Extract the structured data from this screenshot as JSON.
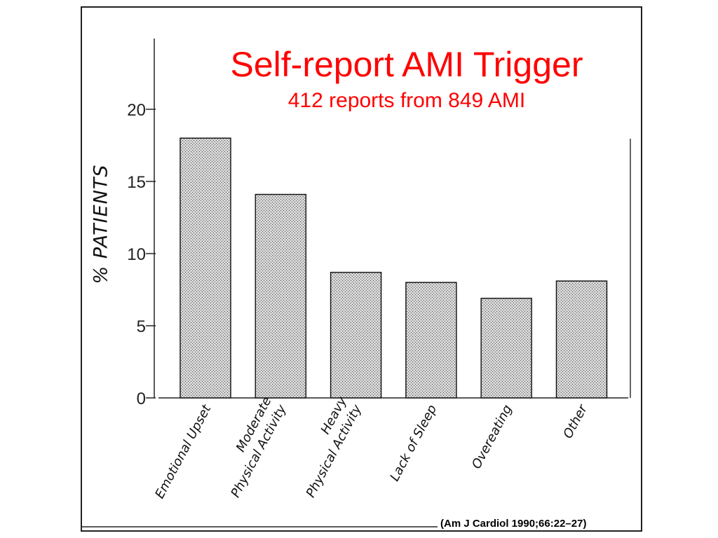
{
  "slide": {
    "title": "Self-report AMI Trigger",
    "subtitle": "412 reports from 849 AMI",
    "citation": "(Am J Cardiol 1990;66:22–27)"
  },
  "chart_data": {
    "type": "bar",
    "title": "Self-report AMI Trigger",
    "subtitle": "412 reports from 849 AMI",
    "xlabel": "",
    "ylabel": "% PATIENTS",
    "categories": [
      [
        "Emotional Upset"
      ],
      [
        "Moderate",
        "Physical Activity"
      ],
      [
        "Heavy",
        "Physical Activity"
      ],
      [
        "Lack of Sleep"
      ],
      [
        "Overeating"
      ],
      [
        "Other"
      ]
    ],
    "values": [
      18,
      14.1,
      8.7,
      8,
      6.9,
      8.1
    ],
    "ylim": [
      0,
      20
    ],
    "yticks": [
      "0",
      "5",
      "10",
      "15",
      "20"
    ],
    "grid": false,
    "colors": {
      "bar_fill": "#b5b5b5",
      "title": "#ff0000",
      "axis": "#222222"
    }
  }
}
